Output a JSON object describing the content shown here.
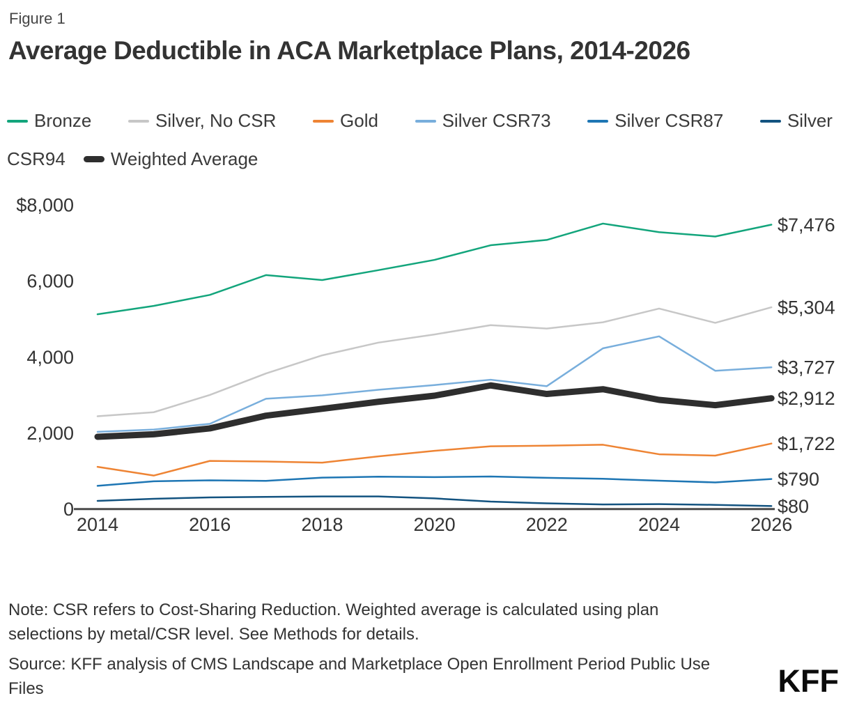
{
  "figure_label": "Figure 1",
  "title": "Average Deductible in ACA Marketplace Plans, 2014-2026",
  "legend": {
    "rows": [
      [
        {
          "label": "Bronze",
          "color": "#13a57c"
        },
        {
          "label": "Silver, No CSR",
          "color": "#c7c7c7"
        },
        {
          "label": "Gold",
          "color": "#ee8434"
        },
        {
          "label": "Silver CSR73",
          "color": "#78aedc"
        },
        {
          "label": "Silver CSR87",
          "color": "#1e76b4"
        },
        {
          "label": "Silver",
          "color": "#135380"
        }
      ],
      [
        {
          "label": "CSR94",
          "color": null
        },
        {
          "label": "Weighted Average",
          "color": "#2e2e2e",
          "thick": true
        }
      ]
    ]
  },
  "chart_data": {
    "type": "line",
    "title": "Average Deductible in ACA Marketplace Plans, 2014-2026",
    "xlabel": "",
    "ylabel": "",
    "x": [
      2014,
      2015,
      2016,
      2017,
      2018,
      2019,
      2020,
      2021,
      2022,
      2023,
      2024,
      2025,
      2026
    ],
    "xticks": [
      "2014",
      "2016",
      "2018",
      "2020",
      "2022",
      "2024",
      "2026"
    ],
    "yticks": [
      {
        "value": 8000,
        "label": "$8,000"
      },
      {
        "value": 6000,
        "label": "6,000"
      },
      {
        "value": 4000,
        "label": "4,000"
      },
      {
        "value": 2000,
        "label": "2,000"
      },
      {
        "value": 0,
        "label": "0"
      }
    ],
    "ylim": [
      0,
      8000
    ],
    "grid": false,
    "legend_position": "top",
    "series": [
      {
        "name": "Bronze",
        "color": "#13a57c",
        "width": 2.5,
        "end_label": "$7,476",
        "values": [
          5120,
          5340,
          5630,
          6150,
          6020,
          6280,
          6550,
          6935,
          7075,
          7505,
          7280,
          7165,
          7476
        ]
      },
      {
        "name": "Silver, No CSR",
        "color": "#c7c7c7",
        "width": 2.5,
        "end_label": "$5,304",
        "values": [
          2440,
          2545,
          3000,
          3565,
          4040,
          4375,
          4590,
          4835,
          4745,
          4910,
          5270,
          4895,
          5304
        ]
      },
      {
        "name": "Gold",
        "color": "#ee8434",
        "width": 2.5,
        "end_label": "$1,722",
        "values": [
          1110,
          880,
          1265,
          1250,
          1220,
          1385,
          1530,
          1650,
          1665,
          1690,
          1440,
          1405,
          1722
        ]
      },
      {
        "name": "Silver CSR73",
        "color": "#78aedc",
        "width": 2.5,
        "end_label": "$3,727",
        "values": [
          2030,
          2090,
          2240,
          2900,
          2990,
          3135,
          3260,
          3400,
          3230,
          4225,
          4540,
          3635,
          3727
        ]
      },
      {
        "name": "Silver CSR87",
        "color": "#1e76b4",
        "width": 2.5,
        "end_label": "$790",
        "values": [
          610,
          730,
          755,
          740,
          825,
          850,
          840,
          855,
          820,
          795,
          745,
          700,
          790
        ]
      },
      {
        "name": "Silver CSR94",
        "color": "#135380",
        "width": 2.5,
        "end_label": "$80",
        "values": [
          215,
          270,
          305,
          320,
          330,
          330,
          280,
          195,
          150,
          120,
          130,
          110,
          80
        ]
      },
      {
        "name": "Weighted Average",
        "color": "#2e2e2e",
        "width": 9,
        "end_label": "$2,912",
        "values": [
          1900,
          1965,
          2120,
          2455,
          2635,
          2820,
          2980,
          3250,
          3025,
          3150,
          2870,
          2730,
          2912
        ]
      }
    ]
  },
  "note": "Note: CSR refers to Cost-Sharing Reduction. Weighted average is calculated using plan selections by metal/CSR level. See Methods for details.",
  "source": "Source: KFF analysis of CMS Landscape and Marketplace Open Enrollment Period Public Use Files",
  "logo": "KFF"
}
